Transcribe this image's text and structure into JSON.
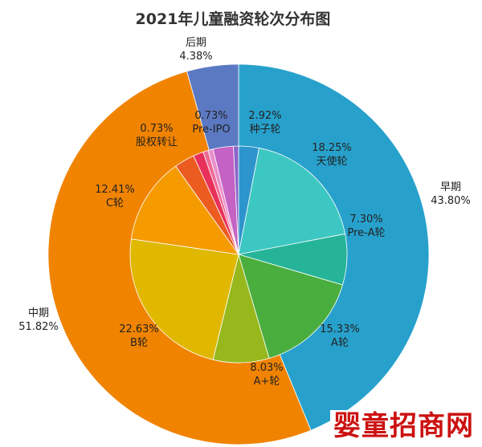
{
  "title": "2021年儿童融资轮次分布图",
  "watermark": "婴童招商网",
  "chart_data": {
    "type": "pie",
    "title": "2021年儿童融资轮次分布图",
    "outer_ring": [
      {
        "label": "早期",
        "value": 43.8,
        "display": "43.80%",
        "color": "#27a1cc"
      },
      {
        "label": "中期",
        "value": 51.82,
        "display": "51.82%",
        "color": "#f08300"
      },
      {
        "label": "后期",
        "value": 4.38,
        "display": "4.38%",
        "color": "#5b79c2"
      }
    ],
    "inner_ring": [
      {
        "label": "种子轮",
        "value": 2.92,
        "display": "2.92%",
        "color": "#2e94cc"
      },
      {
        "label": "天使轮",
        "value": 18.25,
        "display": "18.25%",
        "color": "#3dc7c2"
      },
      {
        "label": "Pre-A轮",
        "value": 7.3,
        "display": "7.30%",
        "color": "#26b499"
      },
      {
        "label": "A轮",
        "value": 15.33,
        "display": "15.33%",
        "color": "#4aae3e"
      },
      {
        "label": "A+轮",
        "value": 8.03,
        "display": "8.03%",
        "color": "#97b81d"
      },
      {
        "label": "B轮",
        "value": 22.63,
        "display": "22.63%",
        "color": "#e1b800"
      },
      {
        "label": "C轮",
        "value": 12.41,
        "display": "12.41%",
        "color": "#f59b00"
      },
      {
        "label": "",
        "value": 2.92,
        "display": "",
        "color": "#ec5b20"
      },
      {
        "label": "",
        "value": 1.46,
        "display": "",
        "color": "#e8315a"
      },
      {
        "label": "股权转让",
        "value": 0.73,
        "display": "0.73%",
        "color": "#ef6b97"
      },
      {
        "label": "",
        "value": 0.73,
        "display": "",
        "color": "#e890cc"
      },
      {
        "label": "",
        "value": 2.92,
        "display": "",
        "color": "#c463c4"
      },
      {
        "label": "Pre-IPO",
        "value": 0.73,
        "display": "0.73%",
        "color": "#8a66c8"
      }
    ]
  }
}
